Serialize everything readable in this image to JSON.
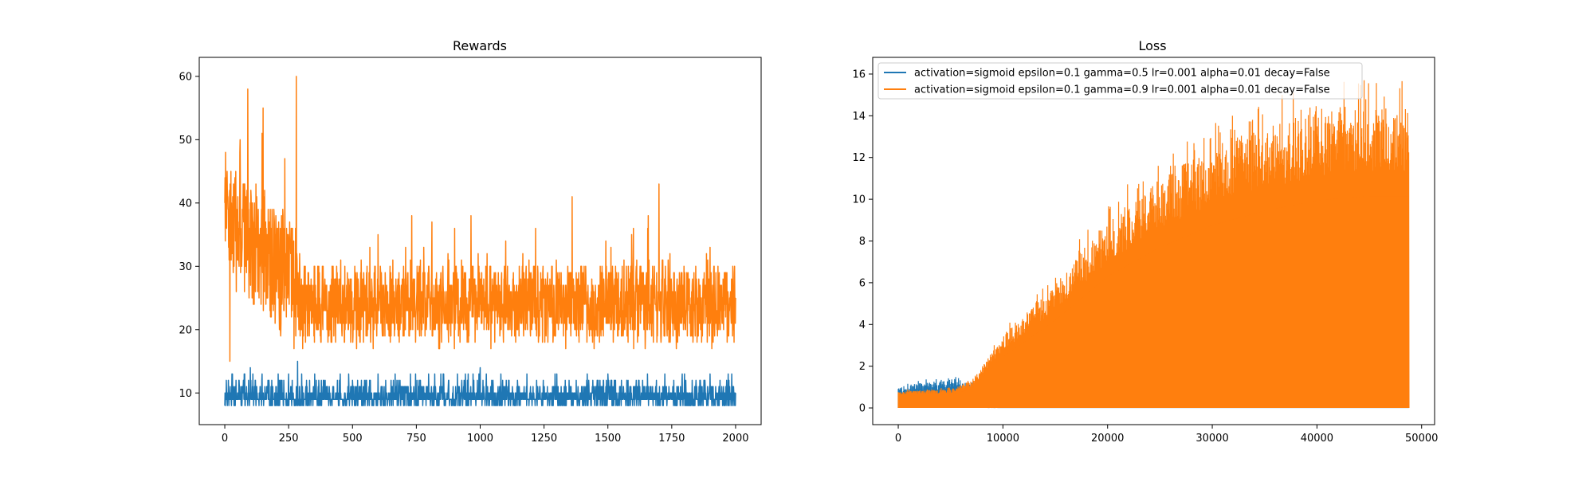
{
  "chart_data": [
    {
      "type": "line",
      "title": "Rewards",
      "xlabel": "",
      "ylabel": "",
      "xlim": [
        -100,
        2100
      ],
      "ylim": [
        5,
        63
      ],
      "xticks": [
        0,
        250,
        500,
        750,
        1000,
        1250,
        1500,
        1750,
        2000
      ],
      "yticks": [
        10,
        20,
        30,
        40,
        50,
        60
      ],
      "grid": false,
      "legend": "none",
      "series": [
        {
          "color": "#1f77b4",
          "x_range": [
            0,
            2000
          ],
          "num_points": 2001,
          "range": [
            8,
            15
          ],
          "typical_range": [
            8,
            12
          ],
          "keypoints": [
            {
              "x": 0,
              "y": 8
            },
            {
              "x": 100,
              "y": 14
            },
            {
              "x": 285,
              "y": 15
            },
            {
              "x": 600,
              "y": 13
            },
            {
              "x": 1000,
              "y": 14
            },
            {
              "x": 1500,
              "y": 13
            },
            {
              "x": 2000,
              "y": 10
            }
          ]
        },
        {
          "color": "#ff7f0e",
          "x_range": [
            0,
            2000
          ],
          "num_points": 2001,
          "range": [
            13,
            60
          ],
          "keypoints": [
            {
              "x": 0,
              "y": 40
            },
            {
              "x": 10,
              "y": 42
            },
            {
              "x": 20,
              "y": 15
            },
            {
              "x": 60,
              "y": 50
            },
            {
              "x": 90,
              "y": 58
            },
            {
              "x": 150,
              "y": 55
            },
            {
              "x": 235,
              "y": 47
            },
            {
              "x": 280,
              "y": 60
            },
            {
              "x": 300,
              "y": 28
            },
            {
              "x": 500,
              "y": 22
            },
            {
              "x": 600,
              "y": 35
            },
            {
              "x": 900,
              "y": 36
            },
            {
              "x": 1100,
              "y": 34
            },
            {
              "x": 1360,
              "y": 41
            },
            {
              "x": 1600,
              "y": 36
            },
            {
              "x": 1700,
              "y": 43
            },
            {
              "x": 1900,
              "y": 33
            },
            {
              "x": 2000,
              "y": 25
            }
          ]
        }
      ]
    },
    {
      "type": "line",
      "title": "Loss",
      "xlabel": "",
      "ylabel": "",
      "xlim": [
        -2440,
        51240
      ],
      "ylim": [
        -0.8,
        16.8
      ],
      "xticks": [
        0,
        10000,
        20000,
        30000,
        40000,
        50000
      ],
      "yticks": [
        0,
        2,
        4,
        6,
        8,
        10,
        12,
        14,
        16
      ],
      "grid": false,
      "legend": "upper left",
      "series": [
        {
          "name": "activation=sigmoid epsilon=0.1 gamma=0.5 lr=0.001 alpha=0.01 decay=False",
          "color": "#1f77b4",
          "x_range": [
            0,
            48800
          ],
          "upper_envelope": [
            {
              "x": 0,
              "y": 1.0
            },
            {
              "x": 2000,
              "y": 1.2
            },
            {
              "x": 5000,
              "y": 1.4
            },
            {
              "x": 7000,
              "y": 1.3
            },
            {
              "x": 10000,
              "y": 0.6
            },
            {
              "x": 15000,
              "y": 0.3
            },
            {
              "x": 30000,
              "y": 0.15
            },
            {
              "x": 48800,
              "y": 0.1
            }
          ]
        },
        {
          "name": "activation=sigmoid epsilon=0.1 gamma=0.9 lr=0.001 alpha=0.01 decay=False",
          "color": "#ff7f0e",
          "x_range": [
            0,
            48800
          ],
          "upper_envelope": [
            {
              "x": 0,
              "y": 0.8
            },
            {
              "x": 5000,
              "y": 0.9
            },
            {
              "x": 7000,
              "y": 1.3
            },
            {
              "x": 10000,
              "y": 3.5
            },
            {
              "x": 15000,
              "y": 6.0
            },
            {
              "x": 20000,
              "y": 9.0
            },
            {
              "x": 25000,
              "y": 11.0
            },
            {
              "x": 30000,
              "y": 12.5
            },
            {
              "x": 35000,
              "y": 13.5
            },
            {
              "x": 40000,
              "y": 14.2
            },
            {
              "x": 45000,
              "y": 14.5
            },
            {
              "x": 48800,
              "y": 14.5
            }
          ],
          "peak": 15.7
        }
      ]
    }
  ]
}
